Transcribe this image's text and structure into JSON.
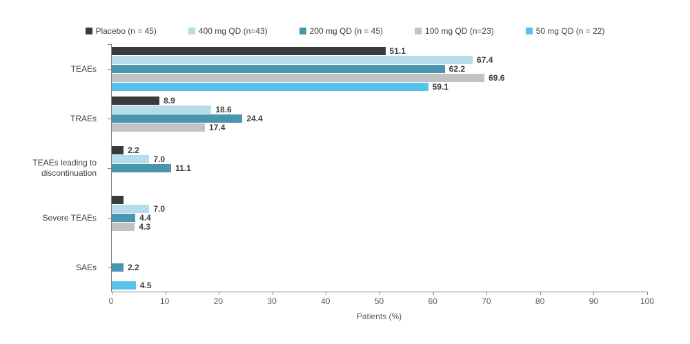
{
  "chart_data": {
    "type": "bar",
    "orientation": "horizontal",
    "grouped": true,
    "legend_position": "top",
    "grid": false,
    "xlabel": "Patients (%)",
    "xlim": [
      0,
      100
    ],
    "xticks": [
      0,
      10,
      20,
      30,
      40,
      50,
      60,
      70,
      80,
      90,
      100
    ],
    "categories": [
      "TEAEs",
      "TRAEs",
      "TEAEs leading to\ndiscontinuation",
      "Severe TEAEs",
      "SAEs"
    ],
    "series": [
      {
        "name": "Placebo (n = 45)",
        "color": "#3a3a3c",
        "values": [
          51.1,
          8.9,
          2.2,
          2.2,
          null
        ],
        "labels": [
          "51.1",
          "8.9",
          "2.2",
          "",
          ""
        ]
      },
      {
        "name": "400 mg QD (n=43)",
        "color": "#b4dcea",
        "values": [
          67.4,
          18.6,
          7.0,
          7.0,
          null
        ],
        "labels": [
          "67.4",
          "18.6",
          "7.0",
          "7.0",
          ""
        ]
      },
      {
        "name": "200 mg QD (n = 45)",
        "color": "#4a96ae",
        "values": [
          62.2,
          24.4,
          11.1,
          4.4,
          2.2
        ],
        "labels": [
          "62.2",
          "24.4",
          "11.1",
          "4.4",
          "2.2"
        ]
      },
      {
        "name": "100 mg QD (n=23)",
        "color": "#c2c2c2",
        "values": [
          69.6,
          17.4,
          null,
          4.3,
          null
        ],
        "labels": [
          "69.6",
          "17.4",
          "",
          "4.3",
          ""
        ]
      },
      {
        "name": "50 mg QD (n = 22)",
        "color": "#58c1eb",
        "values": [
          59.1,
          null,
          null,
          null,
          4.5
        ],
        "labels": [
          "59.1",
          "",
          "",
          "",
          "4.5"
        ]
      }
    ]
  }
}
